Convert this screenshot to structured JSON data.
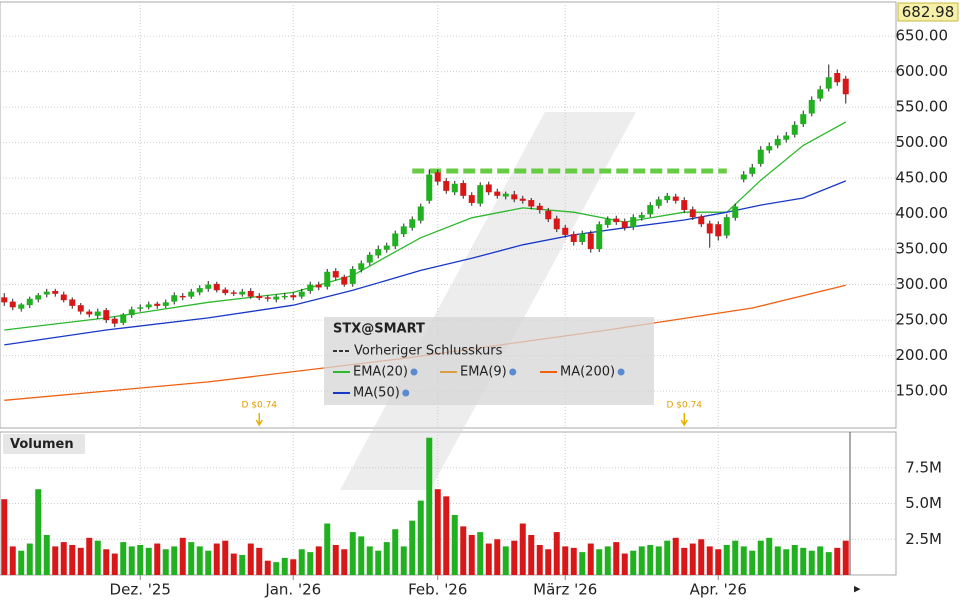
{
  "chart_data": {
    "type": "candlestick",
    "price_label": "682.98",
    "categories": [
      null,
      null,
      null,
      null,
      null,
      null,
      null,
      null,
      null,
      null,
      null,
      null,
      null,
      null,
      null,
      null,
      "Dez. '25",
      null,
      null,
      null,
      null,
      null,
      null,
      null,
      null,
      null,
      null,
      null,
      null,
      null,
      null,
      null,
      null,
      null,
      "Jan. '26",
      null,
      null,
      null,
      null,
      null,
      null,
      null,
      null,
      null,
      null,
      null,
      null,
      null,
      null,
      null,
      null,
      "Feb. '26",
      null,
      null,
      null,
      null,
      null,
      null,
      null,
      null,
      null,
      null,
      null,
      null,
      null,
      null,
      "März '26",
      null,
      null,
      null,
      null,
      null,
      null,
      null,
      null,
      null,
      null,
      null,
      null,
      null,
      null,
      null,
      null,
      null,
      "Apr. '26",
      null,
      null,
      null,
      null,
      null,
      null,
      null,
      null,
      null,
      null,
      null,
      null,
      null,
      null,
      null
    ],
    "open": [
      282,
      276,
      266,
      271,
      279,
      286,
      291,
      286,
      279,
      271,
      262,
      256,
      264,
      252,
      246,
      257,
      266,
      268,
      273,
      270,
      276,
      284,
      283,
      289,
      294,
      301,
      293,
      289,
      286,
      291,
      284,
      282,
      279,
      282,
      285,
      283,
      291,
      300,
      297,
      319,
      311,
      301,
      321,
      331,
      341,
      349,
      354,
      371,
      380,
      390,
      418,
      458,
      446,
      430,
      443,
      426,
      414,
      441,
      431,
      424,
      427,
      421,
      419,
      411,
      404,
      393,
      380,
      371,
      360,
      372,
      350,
      384,
      393,
      389,
      381,
      394,
      399,
      411,
      419,
      424,
      419,
      406,
      396,
      386,
      385,
      369,
      394,
      448,
      456,
      470,
      489,
      496,
      504,
      511,
      526,
      541,
      562,
      576,
      598,
      590
    ],
    "high": [
      288,
      280,
      274,
      283,
      288,
      294,
      294,
      290,
      282,
      274,
      265,
      266,
      267,
      255,
      260,
      269,
      272,
      276,
      276,
      279,
      289,
      288,
      294,
      299,
      305,
      304,
      296,
      292,
      294,
      295,
      288,
      285,
      286,
      288,
      289,
      294,
      304,
      304,
      322,
      323,
      314,
      326,
      334,
      346,
      355,
      359,
      376,
      386,
      396,
      414,
      462,
      462,
      450,
      446,
      447,
      430,
      444,
      445,
      435,
      431,
      432,
      425,
      422,
      415,
      408,
      397,
      384,
      375,
      376,
      376,
      389,
      396,
      397,
      393,
      399,
      402,
      416,
      424,
      429,
      428,
      423,
      410,
      399,
      390,
      389,
      399,
      414,
      460,
      470,
      495,
      500,
      510,
      515,
      530,
      545,
      565,
      580,
      610,
      603,
      594
    ],
    "low": [
      270,
      264,
      262,
      267,
      275,
      282,
      283,
      275,
      266,
      258,
      254,
      252,
      246,
      240,
      243,
      253,
      262,
      265,
      266,
      267,
      272,
      278,
      280,
      285,
      290,
      289,
      285,
      284,
      283,
      280,
      278,
      276,
      275,
      279,
      278,
      280,
      287,
      292,
      293,
      306,
      297,
      297,
      317,
      327,
      337,
      345,
      350,
      367,
      376,
      386,
      414,
      440,
      428,
      426,
      421,
      411,
      410,
      426,
      421,
      420,
      416,
      414,
      406,
      400,
      388,
      374,
      366,
      355,
      356,
      345,
      346,
      380,
      384,
      376,
      377,
      390,
      395,
      407,
      415,
      414,
      401,
      391,
      381,
      352,
      362,
      365,
      390,
      444,
      452,
      466,
      485,
      492,
      500,
      507,
      522,
      537,
      558,
      572,
      580,
      555
    ],
    "close": [
      275,
      268,
      272,
      280,
      285,
      290,
      287,
      278,
      270,
      262,
      258,
      262,
      250,
      245,
      258,
      265,
      268,
      272,
      270,
      275,
      285,
      282,
      290,
      295,
      300,
      292,
      288,
      287,
      290,
      283,
      281,
      280,
      283,
      284,
      282,
      290,
      300,
      296,
      318,
      310,
      300,
      322,
      330,
      342,
      350,
      355,
      372,
      382,
      392,
      410,
      455,
      445,
      432,
      442,
      425,
      415,
      440,
      430,
      425,
      428,
      420,
      418,
      410,
      405,
      392,
      378,
      370,
      360,
      372,
      350,
      385,
      392,
      388,
      380,
      395,
      398,
      412,
      420,
      425,
      418,
      405,
      395,
      385,
      372,
      368,
      395,
      410,
      455,
      465,
      490,
      495,
      505,
      510,
      525,
      540,
      560,
      575,
      592,
      585,
      568
    ],
    "up_color": "#20b020",
    "down_color": "#d81818",
    "ylim": [
      98,
      698
    ],
    "yticks": [
      {
        "value": 150,
        "label": "150.00"
      },
      {
        "value": 200,
        "label": "200.00"
      },
      {
        "value": 250,
        "label": "250.00"
      },
      {
        "value": 300,
        "label": "300.00"
      },
      {
        "value": 350,
        "label": "350.00"
      },
      {
        "value": 400,
        "label": "400.00"
      },
      {
        "value": 450,
        "label": "450.00"
      },
      {
        "value": 500,
        "label": "500.00"
      },
      {
        "value": 550,
        "label": "550.00"
      },
      {
        "value": 600,
        "label": "600.00"
      },
      {
        "value": 650,
        "label": "650.00"
      }
    ],
    "grid": true,
    "legend_title": "STX@SMART",
    "previous_close": {
      "name": "Vorheriger Schlusskurs",
      "value": 460,
      "color": "#66cc44",
      "x": [
        48,
        85
      ]
    },
    "lines": [
      {
        "name": "EMA(20)",
        "color": "#2db82d",
        "x": [
          0,
          12,
          24,
          34,
          41,
          49,
          55,
          61,
          67,
          73,
          80,
          85,
          89,
          94,
          99
        ],
        "values": [
          236,
          253,
          275,
          289,
          313,
          366,
          394,
          408,
          402,
          388,
          402,
          402,
          447,
          496,
          529
        ]
      },
      {
        "name": "EMA(9)",
        "color": "#d9a040",
        "x": [],
        "values": []
      },
      {
        "name": "MA(200)",
        "color": "#f06010",
        "x": [
          0,
          24,
          47,
          71,
          88,
          99
        ],
        "values": [
          137,
          163,
          196,
          236,
          267,
          299
        ]
      },
      {
        "name": "MA(50)",
        "color": "#1838c8",
        "x": [
          0,
          12,
          24,
          34,
          41,
          49,
          55,
          61,
          67,
          73,
          80,
          85,
          89,
          94,
          99
        ],
        "values": [
          215,
          236,
          253,
          271,
          292,
          320,
          337,
          356,
          370,
          380,
          391,
          402,
          412,
          422,
          446
        ]
      }
    ],
    "dividends": [
      {
        "index": 30,
        "label": "D $0.74"
      },
      {
        "index": 80,
        "label": "D $0.74"
      }
    ],
    "volume": {
      "title": "Volumen",
      "values": [
        5.3,
        2.0,
        1.7,
        2.2,
        6.0,
        2.8,
        2.0,
        2.3,
        2.1,
        1.9,
        2.6,
        2.4,
        1.8,
        1.5,
        2.3,
        2.0,
        2.1,
        1.9,
        2.2,
        1.8,
        2.0,
        2.6,
        2.3,
        2.0,
        1.7,
        2.2,
        2.4,
        1.5,
        1.4,
        2.2,
        1.9,
        1.0,
        0.9,
        1.2,
        1.1,
        1.8,
        1.6,
        2.0,
        3.6,
        2.1,
        1.8,
        3.0,
        2.7,
        2.0,
        1.7,
        2.3,
        3.2,
        2.0,
        3.8,
        5.2,
        9.6,
        6.0,
        5.5,
        4.2,
        3.4,
        2.8,
        3.0,
        2.2,
        2.5,
        2.0,
        2.4,
        3.6,
        2.8,
        2.1,
        1.8,
        3.0,
        2.0,
        1.9,
        1.6,
        2.2,
        1.8,
        2.0,
        2.3,
        1.5,
        1.7,
        2.0,
        2.1,
        2.0,
        2.4,
        2.6,
        1.9,
        2.2,
        2.5,
        2.0,
        1.8,
        2.1,
        2.4,
        2.0,
        1.7,
        2.4,
        2.6,
        2.0,
        1.8,
        2.1,
        1.9,
        1.7,
        2.0,
        1.6,
        1.9,
        2.4
      ],
      "ylim": [
        0,
        10
      ],
      "yticks": [
        {
          "value": 2.5,
          "label": "2.5M"
        },
        {
          "value": 5,
          "label": "5.0M"
        },
        {
          "value": 7.5,
          "label": "7.5M"
        }
      ]
    }
  }
}
